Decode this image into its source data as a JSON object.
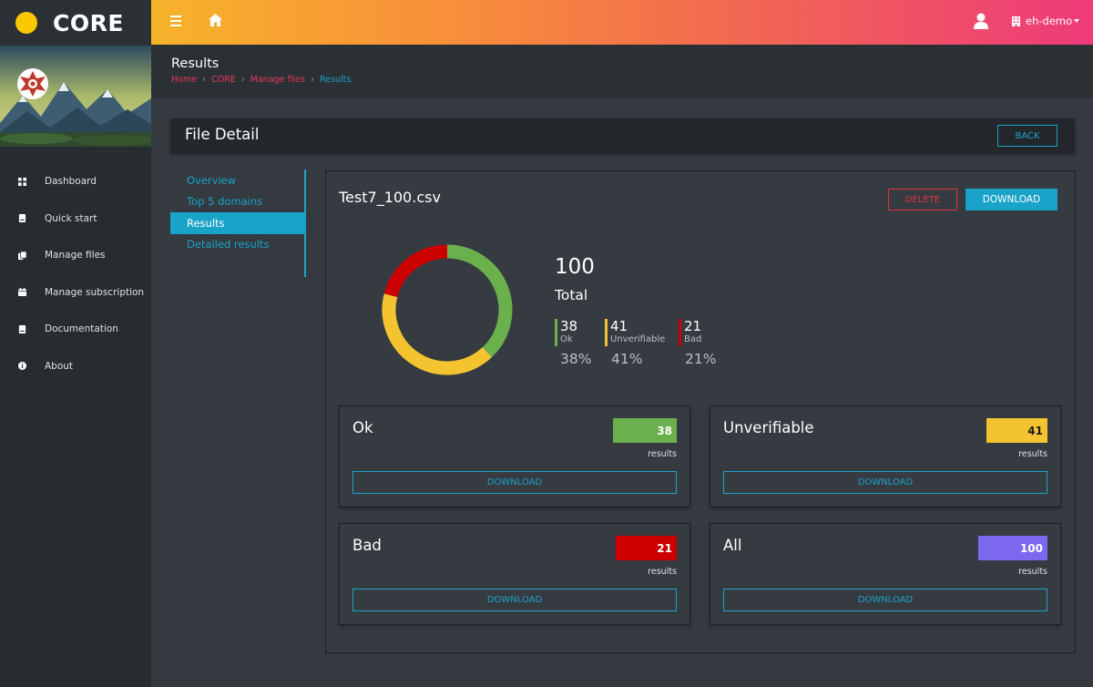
{
  "brand": {
    "name": "CORE",
    "dot_color": "#f8c800"
  },
  "sidebar": {
    "items": [
      {
        "label": "Dashboard",
        "icon": "dashboard-grid-icon"
      },
      {
        "label": "Quick start",
        "icon": "book-icon"
      },
      {
        "label": "Manage files",
        "icon": "files-icon"
      },
      {
        "label": "Manage subscription",
        "icon": "calendar-icon"
      },
      {
        "label": "Documentation",
        "icon": "book-icon"
      },
      {
        "label": "About",
        "icon": "info-circle-icon"
      }
    ]
  },
  "topbar": {
    "menu_icon": "hamburger-menu-icon",
    "home_icon": "home-icon",
    "user_icon": "user-icon",
    "account_icon": "building-icon",
    "account_label": "eh-demo"
  },
  "page": {
    "title": "Results",
    "breadcrumb": [
      {
        "label": "Home"
      },
      {
        "label": "CORE"
      },
      {
        "label": "Manage files"
      },
      {
        "label": "Results"
      }
    ]
  },
  "detail": {
    "title": "File Detail",
    "back_label": "BACK",
    "tabs": [
      {
        "label": "Overview",
        "active": false
      },
      {
        "label": "Top 5 domains",
        "active": false
      },
      {
        "label": "Results",
        "active": true
      },
      {
        "label": "Detailed results",
        "active": false
      }
    ],
    "file_name": "Test7_100.csv",
    "delete_label": "DELETE",
    "download_label": "DOWNLOAD"
  },
  "summary": {
    "total_value": "100",
    "total_label": "Total",
    "stats": [
      {
        "value": "38",
        "label": "Ok",
        "pct": "38%",
        "color": "#6ab04c"
      },
      {
        "value": "41",
        "label": "Unverifiable",
        "pct": "41%",
        "color": "#f4c430"
      },
      {
        "value": "21",
        "label": "Bad",
        "pct": "21%",
        "color": "#cc0000"
      }
    ]
  },
  "chart_data": {
    "type": "pie",
    "categories": [
      "Ok",
      "Unverifiable",
      "Bad"
    ],
    "values": [
      38,
      41,
      21
    ],
    "colors": [
      "#6ab04c",
      "#f4c430",
      "#cc0000"
    ],
    "donut": true
  },
  "cards": [
    {
      "title": "Ok",
      "count": "38",
      "results_label": "results",
      "download_label": "DOWNLOAD",
      "color": "#6ab04c",
      "text_color": "#ffffff"
    },
    {
      "title": "Unverifiable",
      "count": "41",
      "results_label": "results",
      "download_label": "DOWNLOAD",
      "color": "#f4c430",
      "text_color": "#1a1a1a"
    },
    {
      "title": "Bad",
      "count": "21",
      "results_label": "results",
      "download_label": "DOWNLOAD",
      "color": "#cc0000",
      "text_color": "#ffffff"
    },
    {
      "title": "All",
      "count": "100",
      "results_label": "results",
      "download_label": "DOWNLOAD",
      "color": "#7b68ee",
      "text_color": "#ffffff"
    }
  ]
}
